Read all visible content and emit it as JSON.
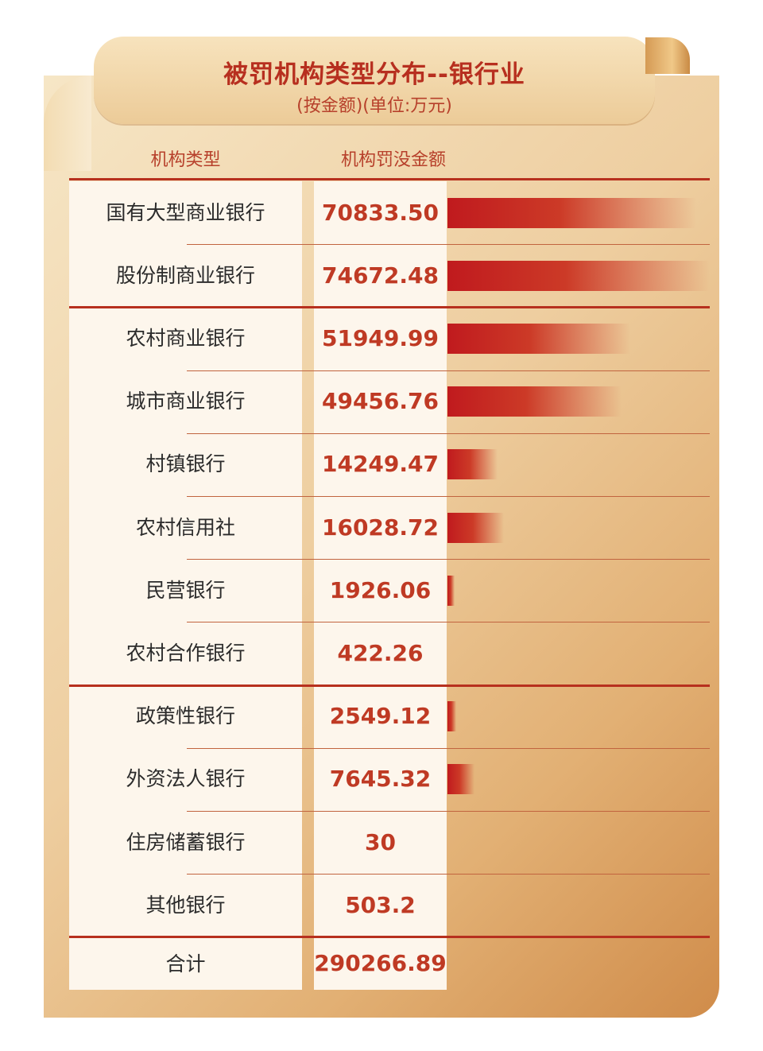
{
  "chart_data": {
    "type": "bar",
    "title": "被罚机构类型分布--银行业",
    "subtitle": "(按金额)(单位:万元)",
    "column_headers": [
      "机构类型",
      "机构罚没金额"
    ],
    "categories": [
      "国有大型商业银行",
      "股份制商业银行",
      "农村商业银行",
      "城市商业银行",
      "村镇银行",
      "农村信用社",
      "民营银行",
      "农村合作银行",
      "政策性银行",
      "外资法人银行",
      "住房储蓄银行",
      "其他银行"
    ],
    "value_labels": [
      "70833.50",
      "74672.48",
      "51949.99",
      "49456.76",
      "14249.47",
      "16028.72",
      "1926.06",
      "422.26",
      "2549.12",
      "7645.32",
      "30",
      "503.2"
    ],
    "values": [
      70833.5,
      74672.48,
      51949.99,
      49456.76,
      14249.47,
      16028.72,
      1926.06,
      422.26,
      2549.12,
      7645.32,
      30,
      503.2
    ],
    "groups_end_after": [
      1,
      7
    ],
    "total_label": "合计",
    "total_value": "290266.89"
  }
}
